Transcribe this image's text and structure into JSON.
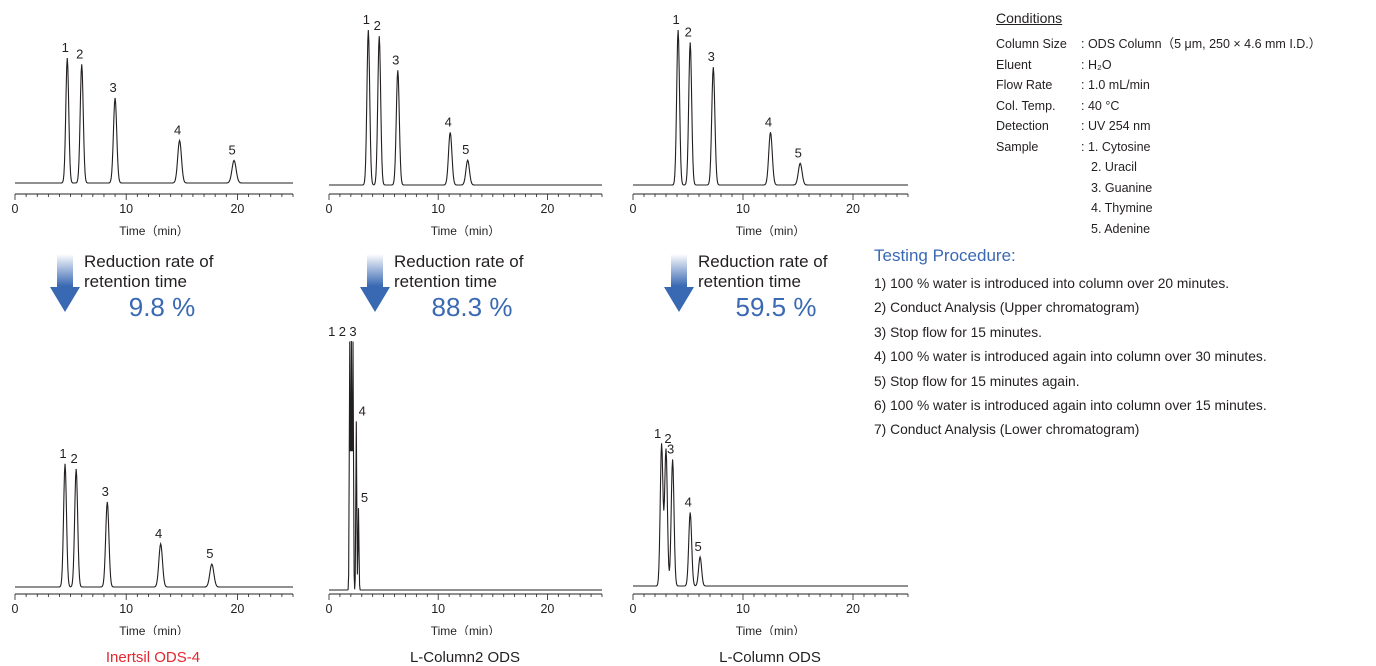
{
  "colors": {
    "accent": "#3a69b3",
    "highlight": "#e3272f",
    "ink": "#231f20"
  },
  "chart_data": [
    {
      "type": "line",
      "position": "upper-left",
      "xlabel": "Time（min）",
      "xlim": [
        0,
        25
      ],
      "xticks": [
        0,
        10,
        20
      ],
      "peaks": [
        {
          "label": "1",
          "x": 4.7,
          "y": 1.0
        },
        {
          "label": "2",
          "x": 6.0,
          "y": 0.95
        },
        {
          "label": "3",
          "x": 9.0,
          "y": 0.68
        },
        {
          "label": "4",
          "x": 14.8,
          "y": 0.34
        },
        {
          "label": "5",
          "x": 19.7,
          "y": 0.18
        }
      ]
    },
    {
      "type": "line",
      "position": "upper-middle",
      "xlabel": "Time（min）",
      "xlim": [
        0,
        25
      ],
      "xticks": [
        0,
        10,
        20
      ],
      "peaks": [
        {
          "label": "1",
          "x": 3.6,
          "y": 1.0
        },
        {
          "label": "2",
          "x": 4.6,
          "y": 0.96
        },
        {
          "label": "3",
          "x": 6.3,
          "y": 0.74
        },
        {
          "label": "4",
          "x": 11.1,
          "y": 0.34
        },
        {
          "label": "5",
          "x": 12.7,
          "y": 0.16
        }
      ]
    },
    {
      "type": "line",
      "position": "upper-right",
      "xlabel": "Time（min）",
      "xlim": [
        0,
        25
      ],
      "xticks": [
        0,
        10,
        20
      ],
      "peaks": [
        {
          "label": "1",
          "x": 4.1,
          "y": 1.0
        },
        {
          "label": "2",
          "x": 5.2,
          "y": 0.92
        },
        {
          "label": "3",
          "x": 7.3,
          "y": 0.76
        },
        {
          "label": "4",
          "x": 12.5,
          "y": 0.34
        },
        {
          "label": "5",
          "x": 15.2,
          "y": 0.14
        }
      ]
    },
    {
      "type": "line",
      "position": "lower-left",
      "xlabel": "Time（min）",
      "xlim": [
        0,
        25
      ],
      "xticks": [
        0,
        10,
        20
      ],
      "peaks": [
        {
          "label": "1",
          "x": 4.5,
          "y": 0.97
        },
        {
          "label": "2",
          "x": 5.5,
          "y": 0.93
        },
        {
          "label": "3",
          "x": 8.3,
          "y": 0.67
        },
        {
          "label": "4",
          "x": 13.1,
          "y": 0.34
        },
        {
          "label": "5",
          "x": 17.7,
          "y": 0.18
        }
      ]
    },
    {
      "type": "line",
      "position": "lower-middle",
      "xlabel": "Time（min）",
      "xlim": [
        0,
        25
      ],
      "xticks": [
        0,
        10,
        20
      ],
      "peaks": [
        {
          "label": "1",
          "x": 1.9,
          "y": 1.0
        },
        {
          "label": "2",
          "x": 2.05,
          "y": 1.0
        },
        {
          "label": "3",
          "x": 2.2,
          "y": 1.0
        },
        {
          "label": "4",
          "x": 2.5,
          "y": 0.68
        },
        {
          "label": "5",
          "x": 2.7,
          "y": 0.33
        }
      ]
    },
    {
      "type": "line",
      "position": "lower-right",
      "xlabel": "Time（min）",
      "xlim": [
        0,
        25
      ],
      "xticks": [
        0,
        10,
        20
      ],
      "peaks": [
        {
          "label": "1",
          "x": 2.6,
          "y": 0.83
        },
        {
          "label": "2",
          "x": 3.0,
          "y": 0.8
        },
        {
          "label": "3",
          "x": 3.6,
          "y": 0.74
        },
        {
          "label": "4",
          "x": 5.2,
          "y": 0.43
        },
        {
          "label": "5",
          "x": 6.1,
          "y": 0.17
        }
      ]
    }
  ],
  "reduction": [
    {
      "line1": "Reduction rate of",
      "line2": "retention time",
      "rate": "9.8 %"
    },
    {
      "line1": "Reduction rate of",
      "line2": "retention time",
      "rate": "88.3 %"
    },
    {
      "line1": "Reduction rate of",
      "line2": "retention time",
      "rate": "59.5 %"
    }
  ],
  "columns": [
    "Inertsil ODS-4",
    "L-Column2 ODS",
    "L-Column ODS"
  ],
  "conditions": {
    "title": "Conditions",
    "rows": [
      {
        "k": "Column Size",
        "v": ": ODS Column（5 μm, 250 × 4.6 mm I.D.）"
      },
      {
        "k": "Eluent",
        "v": ": H₂O"
      },
      {
        "k": "Flow Rate",
        "v": ": 1.0 mL/min"
      },
      {
        "k": "Col. Temp.",
        "v": ": 40 °C"
      },
      {
        "k": "Detection",
        "v": ": UV 254 nm"
      },
      {
        "k": "Sample",
        "v": ": 1. Cytosine"
      }
    ],
    "samples": [
      "2. Uracil",
      "3. Guanine",
      "4. Thymine",
      "5. Adenine"
    ]
  },
  "procedure": {
    "title": "Testing Procedure:",
    "steps": [
      "1) 100 % water is introduced into column over 20 minutes.",
      "2) Conduct Analysis (Upper chromatogram)",
      "3) Stop flow for 15 minutes.",
      "4) 100 % water is introduced again into column over 30 minutes.",
      "5) Stop flow for 15 minutes again.",
      "6) 100 % water is introduced again into column over 15 minutes.",
      "7) Conduct Analysis (Lower chromatogram)"
    ]
  }
}
